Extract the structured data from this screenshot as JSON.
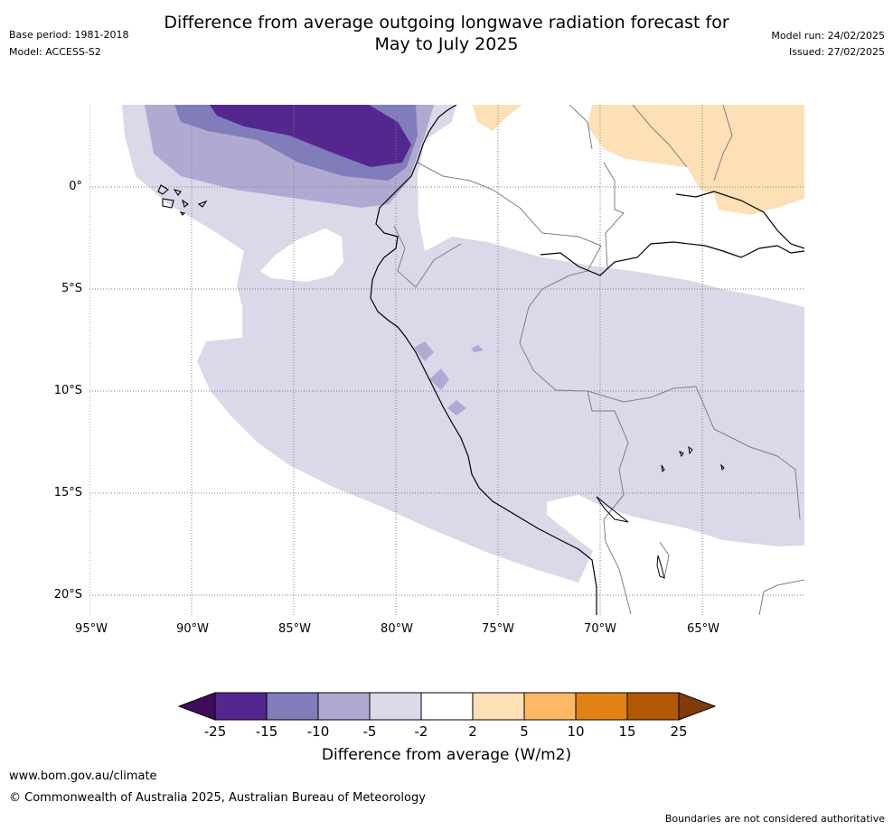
{
  "header": {
    "title_line1": "Difference from average outgoing longwave radiation forecast for",
    "title_line2": "May to July 2025",
    "base_period": "Base period: 1981-2018",
    "model": "Model: ACCESS-S2",
    "model_run": "Model run: 24/02/2025",
    "issued": "Issued: 27/02/2025"
  },
  "map": {
    "region": "Western South America / Eastern Pacific",
    "lat_labels": [
      "0°",
      "5°S",
      "10°S",
      "15°S",
      "20°S"
    ],
    "lon_labels": [
      "95°W",
      "90°W",
      "85°W",
      "80°W",
      "75°W",
      "70°W",
      "65°W"
    ],
    "gridlines": "dotted",
    "ocean_color": "#ffffff",
    "coastline_color": "#000000",
    "border_color": "#808080"
  },
  "colorbar": {
    "title": "Difference from average (W/m2)",
    "tick_labels": [
      "-25",
      "-15",
      "-10",
      "-5",
      "-2",
      "2",
      "5",
      "10",
      "15",
      "25"
    ],
    "colors": [
      "#3f0b5c",
      "#54278f",
      "#807dba",
      "#b0a9d1",
      "#dadaeb",
      "#ffffff",
      "#fee0b6",
      "#fdb863",
      "#e08214",
      "#b35806",
      "#7f3b08"
    ]
  },
  "footer": {
    "website": "www.bom.gov.au/climate",
    "copyright": "© Commonwealth of Australia 2025, Australian Bureau of Meteorology",
    "disclaimer": "Boundaries are not considered authoritative"
  }
}
